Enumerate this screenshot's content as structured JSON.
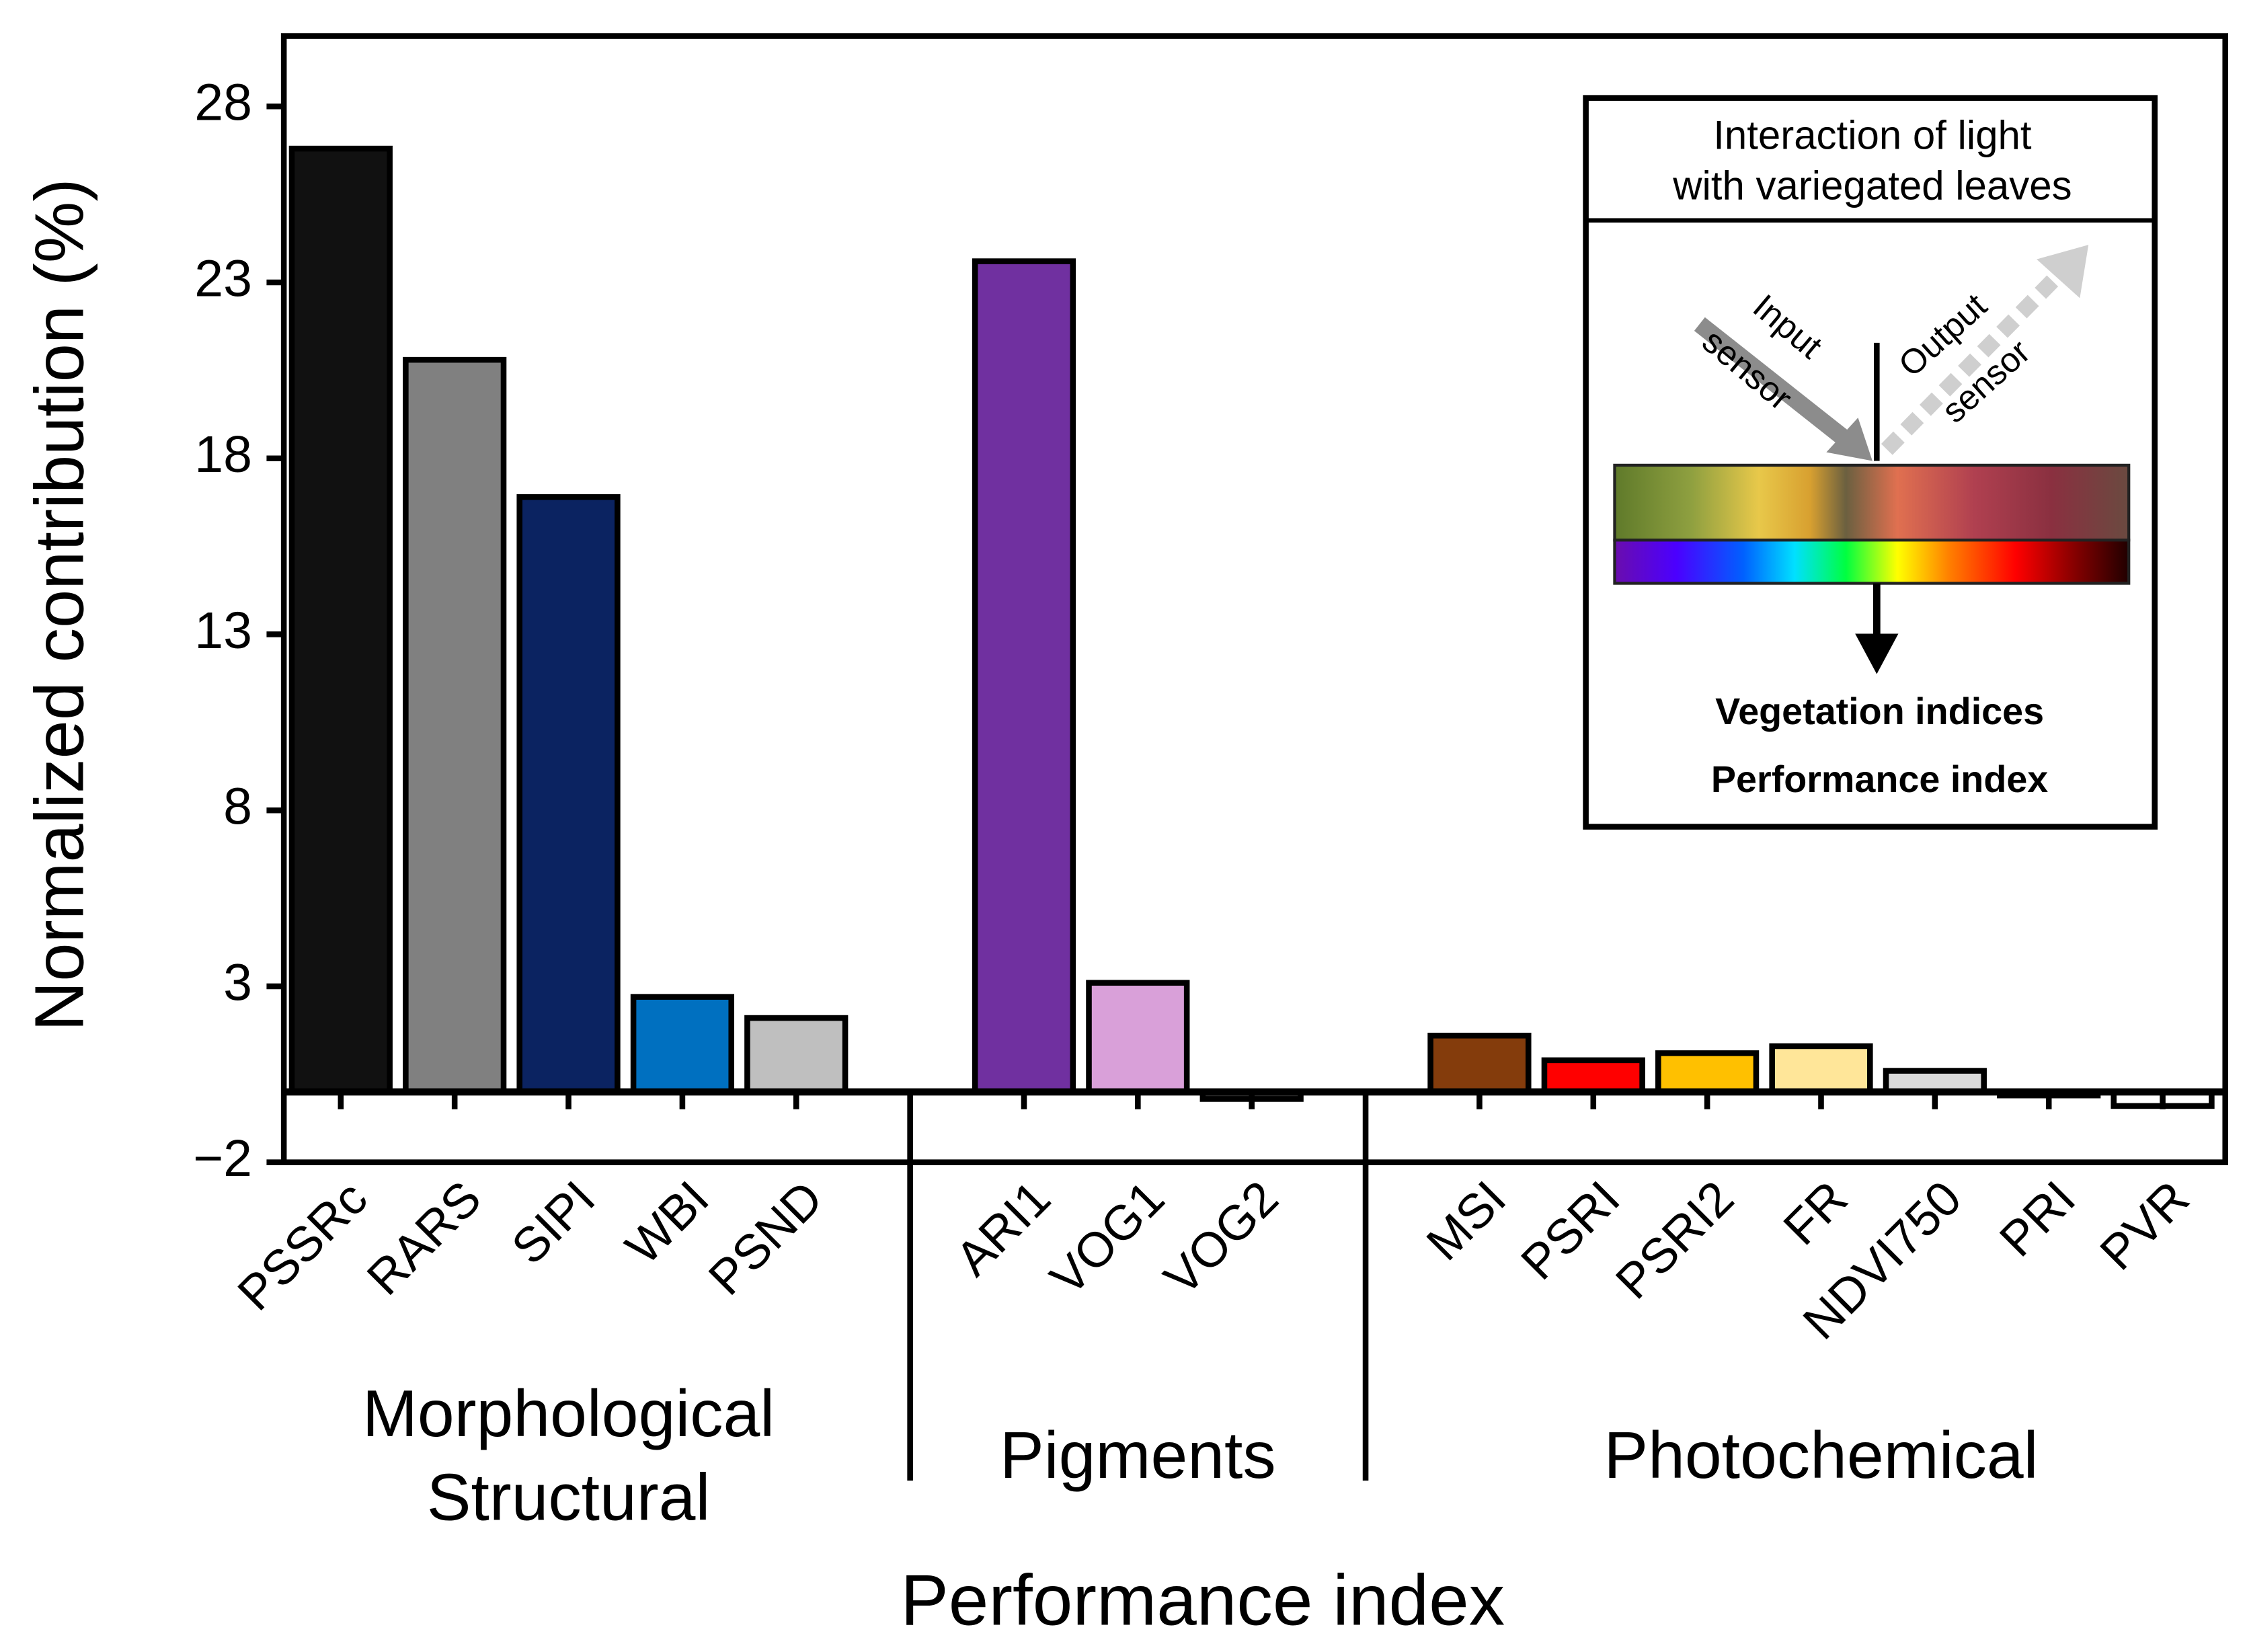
{
  "chart_data": {
    "type": "bar",
    "y_label": "Normalized contribution (%)",
    "x_label": "Performance index",
    "ylim": [
      -2,
      30
    ],
    "yticks": [
      {
        "value": -2,
        "label": "−2"
      },
      3,
      8,
      13,
      18,
      23,
      28
    ],
    "groups": [
      {
        "label": [
          "Morphological",
          "Structural"
        ],
        "categories": [
          "PSSRc",
          "RARS",
          "SIPI",
          "WBI",
          "PSND"
        ],
        "values": [
          26.8,
          20.8,
          16.9,
          2.7,
          2.1
        ],
        "colors": [
          "#111111",
          "#808080",
          "#0b2361",
          "#0070c0",
          "#bfbfbf"
        ]
      },
      {
        "label": [
          "Pigments"
        ],
        "categories": [
          "ARI1",
          "VOG1",
          "VOG2"
        ],
        "values": [
          23.6,
          3.1,
          -0.2
        ],
        "colors": [
          "#7030a0",
          "#d9a0d9",
          "#404040"
        ]
      },
      {
        "label": [
          "Photochemical"
        ],
        "categories": [
          "MSI",
          "PSRI",
          "PSRI2",
          "FR",
          "NDVI750",
          "PRI",
          "PVR"
        ],
        "values": [
          1.6,
          0.9,
          1.1,
          1.3,
          0.6,
          -0.1,
          -0.4
        ],
        "colors": [
          "#843c0c",
          "#ff0000",
          "#ffc000",
          "#ffe699",
          "#d9d9d9",
          "#ffffff",
          "#ffffff"
        ]
      }
    ],
    "inset": {
      "title": [
        "Interaction of light",
        "with variegated leaves"
      ],
      "input": [
        "Input",
        "sensor"
      ],
      "output": [
        "Output",
        "sensor"
      ],
      "results": [
        "Vegetation indices",
        "Performance index"
      ]
    }
  }
}
